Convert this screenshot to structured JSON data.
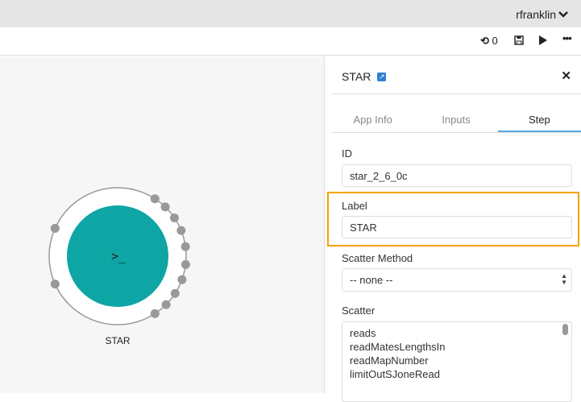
{
  "header": {
    "username": "rfranklin"
  },
  "toolbar": {
    "revision_count": "0"
  },
  "node": {
    "label": "STAR",
    "color": "#0ea5a5"
  },
  "panel": {
    "title": "STAR",
    "tabs": [
      {
        "label": "App Info"
      },
      {
        "label": "Inputs"
      },
      {
        "label": "Step",
        "active": true
      }
    ],
    "id_label": "ID",
    "id_value": "star_2_6_0c",
    "label_label": "Label",
    "label_value": "STAR",
    "scatter_method_label": "Scatter Method",
    "scatter_method_value": "-- none --",
    "scatter_label": "Scatter",
    "scatter_items": [
      "reads",
      "readMatesLengthsIn",
      "readMapNumber",
      "limitOutSJoneRead"
    ]
  },
  "highlight_color": "#f5a300"
}
